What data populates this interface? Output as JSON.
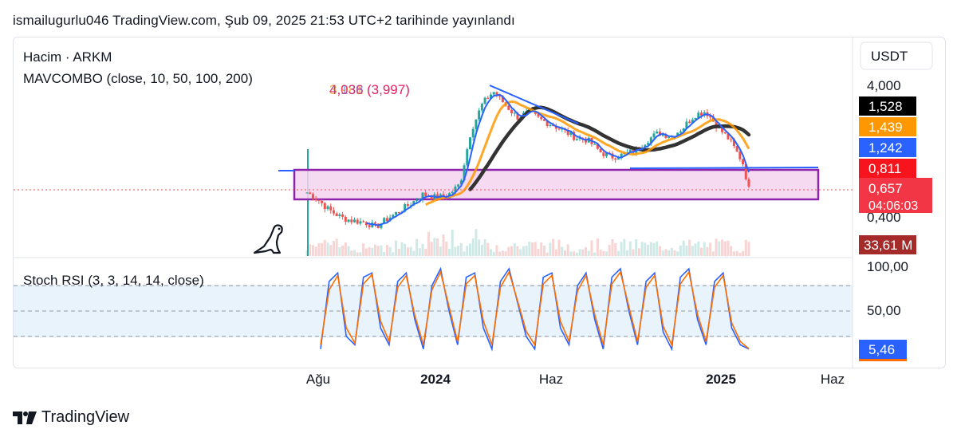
{
  "header": {
    "publish_line": "ismailugurlu046 TradingView.com, Şub 09, 2025 21:53 UTC+2 tarihinde yayınlandı"
  },
  "main_pane": {
    "legend_volume": "Hacim · ARKM",
    "legend_indicator": "MAVCOMBO (close, 10, 50, 100, 200)",
    "legend_values": [
      "4,036",
      "3,981",
      "4,138"
    ],
    "legend_value_main": "3,997",
    "currency": "USDT"
  },
  "price_scale": {
    "ticks": [
      "4,000",
      "0,400"
    ],
    "badges": [
      {
        "label": "1,528",
        "bg": "#000000",
        "fg": "#ffffff"
      },
      {
        "label": "1,439",
        "bg": "#ff9800",
        "fg": "#ffffff"
      },
      {
        "label": "1,242",
        "bg": "#2962ff",
        "fg": "#ffffff"
      },
      {
        "label": "0,811",
        "bg": "#f7141c",
        "fg": "#ffffff"
      }
    ],
    "last_price": "0,657",
    "countdown": "04:06:03",
    "volume_badge": "33,61 M"
  },
  "stoch_pane": {
    "title": "Stoch RSI (3, 3, 14, 14, close)",
    "ticks": [
      "100,00",
      "50,00"
    ],
    "value_badge": "5,46"
  },
  "time_axis": {
    "labels": [
      "Ağu",
      "2024",
      "Haz",
      "2025",
      "Haz"
    ],
    "bold": [
      false,
      true,
      false,
      true,
      false
    ]
  },
  "footer": {
    "brand": "TradingView"
  },
  "colors": {
    "ma10": "#2962ff",
    "ma50": "#ff9800",
    "ma100": "#000000",
    "up": "#26a69a",
    "down": "#ef5350",
    "zone_fill": "#f3d4f0",
    "zone_stroke": "#8e24aa",
    "trend": "#2962ff",
    "k_line": "#2962ff",
    "d_line": "#ff6d00"
  },
  "chart_data": [
    {
      "type": "candlestick",
      "title": "ARKM / USDT",
      "x_labels": [
        "Ağu",
        "2024",
        "Haz",
        "2025",
        "Haz"
      ],
      "scale": "log",
      "y_ticks": [
        "4,000",
        "0,400"
      ],
      "close_series": [
        [
          "2023-07-18",
          0.62
        ],
        [
          "2023-08-01",
          0.55
        ],
        [
          "2023-08-15",
          0.46
        ],
        [
          "2023-09-01",
          0.4
        ],
        [
          "2023-09-15",
          0.38
        ],
        [
          "2023-10-01",
          0.37
        ],
        [
          "2023-10-15",
          0.34
        ],
        [
          "2023-11-01",
          0.4
        ],
        [
          "2023-11-15",
          0.45
        ],
        [
          "2023-12-01",
          0.52
        ],
        [
          "2023-12-15",
          0.6
        ],
        [
          "2024-01-01",
          0.57
        ],
        [
          "2024-01-15",
          0.58
        ],
        [
          "2024-02-01",
          0.72
        ],
        [
          "2024-02-15",
          1.8
        ],
        [
          "2024-03-01",
          2.9
        ],
        [
          "2024-03-15",
          3.6
        ],
        [
          "2024-04-01",
          2.8
        ],
        [
          "2024-04-15",
          2.3
        ],
        [
          "2024-05-01",
          2.5
        ],
        [
          "2024-05-15",
          2.2
        ],
        [
          "2024-06-01",
          2.0
        ],
        [
          "2024-06-15",
          1.8
        ],
        [
          "2024-07-01",
          1.6
        ],
        [
          "2024-07-15",
          1.55
        ],
        [
          "2024-08-01",
          1.25
        ],
        [
          "2024-08-15",
          1.15
        ],
        [
          "2024-09-01",
          1.2
        ],
        [
          "2024-09-15",
          1.3
        ],
        [
          "2024-10-01",
          1.55
        ],
        [
          "2024-10-15",
          1.75
        ],
        [
          "2024-11-01",
          1.65
        ],
        [
          "2024-11-15",
          1.9
        ],
        [
          "2024-12-01",
          2.4
        ],
        [
          "2024-12-15",
          2.55
        ],
        [
          "2025-01-01",
          1.9
        ],
        [
          "2025-01-15",
          1.55
        ],
        [
          "2025-02-01",
          1.05
        ],
        [
          "2025-02-09",
          0.657
        ]
      ],
      "moving_averages": [
        {
          "name": "MA10",
          "last": 1.242,
          "color": "#2962ff"
        },
        {
          "name": "MA50",
          "last": 1.439,
          "color": "#ff9800"
        },
        {
          "name": "MA100",
          "last": 1.528,
          "color": "#000000"
        }
      ],
      "support_zone": [
        0.6,
        0.78
      ],
      "last_price": 0.657,
      "volume_last": "33,61 M"
    },
    {
      "type": "line",
      "title": "Stoch RSI (3, 3, 14, 14, close)",
      "ylim": [
        0,
        100
      ],
      "bands": [
        20,
        50,
        80
      ],
      "series": [
        {
          "values": [
            5,
            85,
            95,
            20,
            10,
            90,
            95,
            30,
            10,
            85,
            95,
            40,
            5,
            80,
            100,
            50,
            10,
            90,
            95,
            30,
            5,
            85,
            100,
            60,
            20,
            5,
            90,
            95,
            30,
            10,
            80,
            95,
            40,
            5,
            90,
            100,
            50,
            10,
            85,
            95,
            25,
            5,
            90,
            100,
            40,
            10,
            85,
            95,
            30,
            10,
            5
          ]
        },
        {
          "values": [
            10,
            75,
            92,
            30,
            12,
            82,
            93,
            38,
            14,
            78,
            92,
            45,
            10,
            75,
            96,
            55,
            14,
            82,
            92,
            38,
            10,
            78,
            96,
            62,
            26,
            10,
            82,
            92,
            38,
            14,
            74,
            92,
            46,
            10,
            82,
            96,
            55,
            14,
            78,
            92,
            32,
            10,
            82,
            96,
            46,
            14,
            78,
            92,
            36,
            14,
            5.46
          ]
        }
      ],
      "last": 5.46
    }
  ]
}
